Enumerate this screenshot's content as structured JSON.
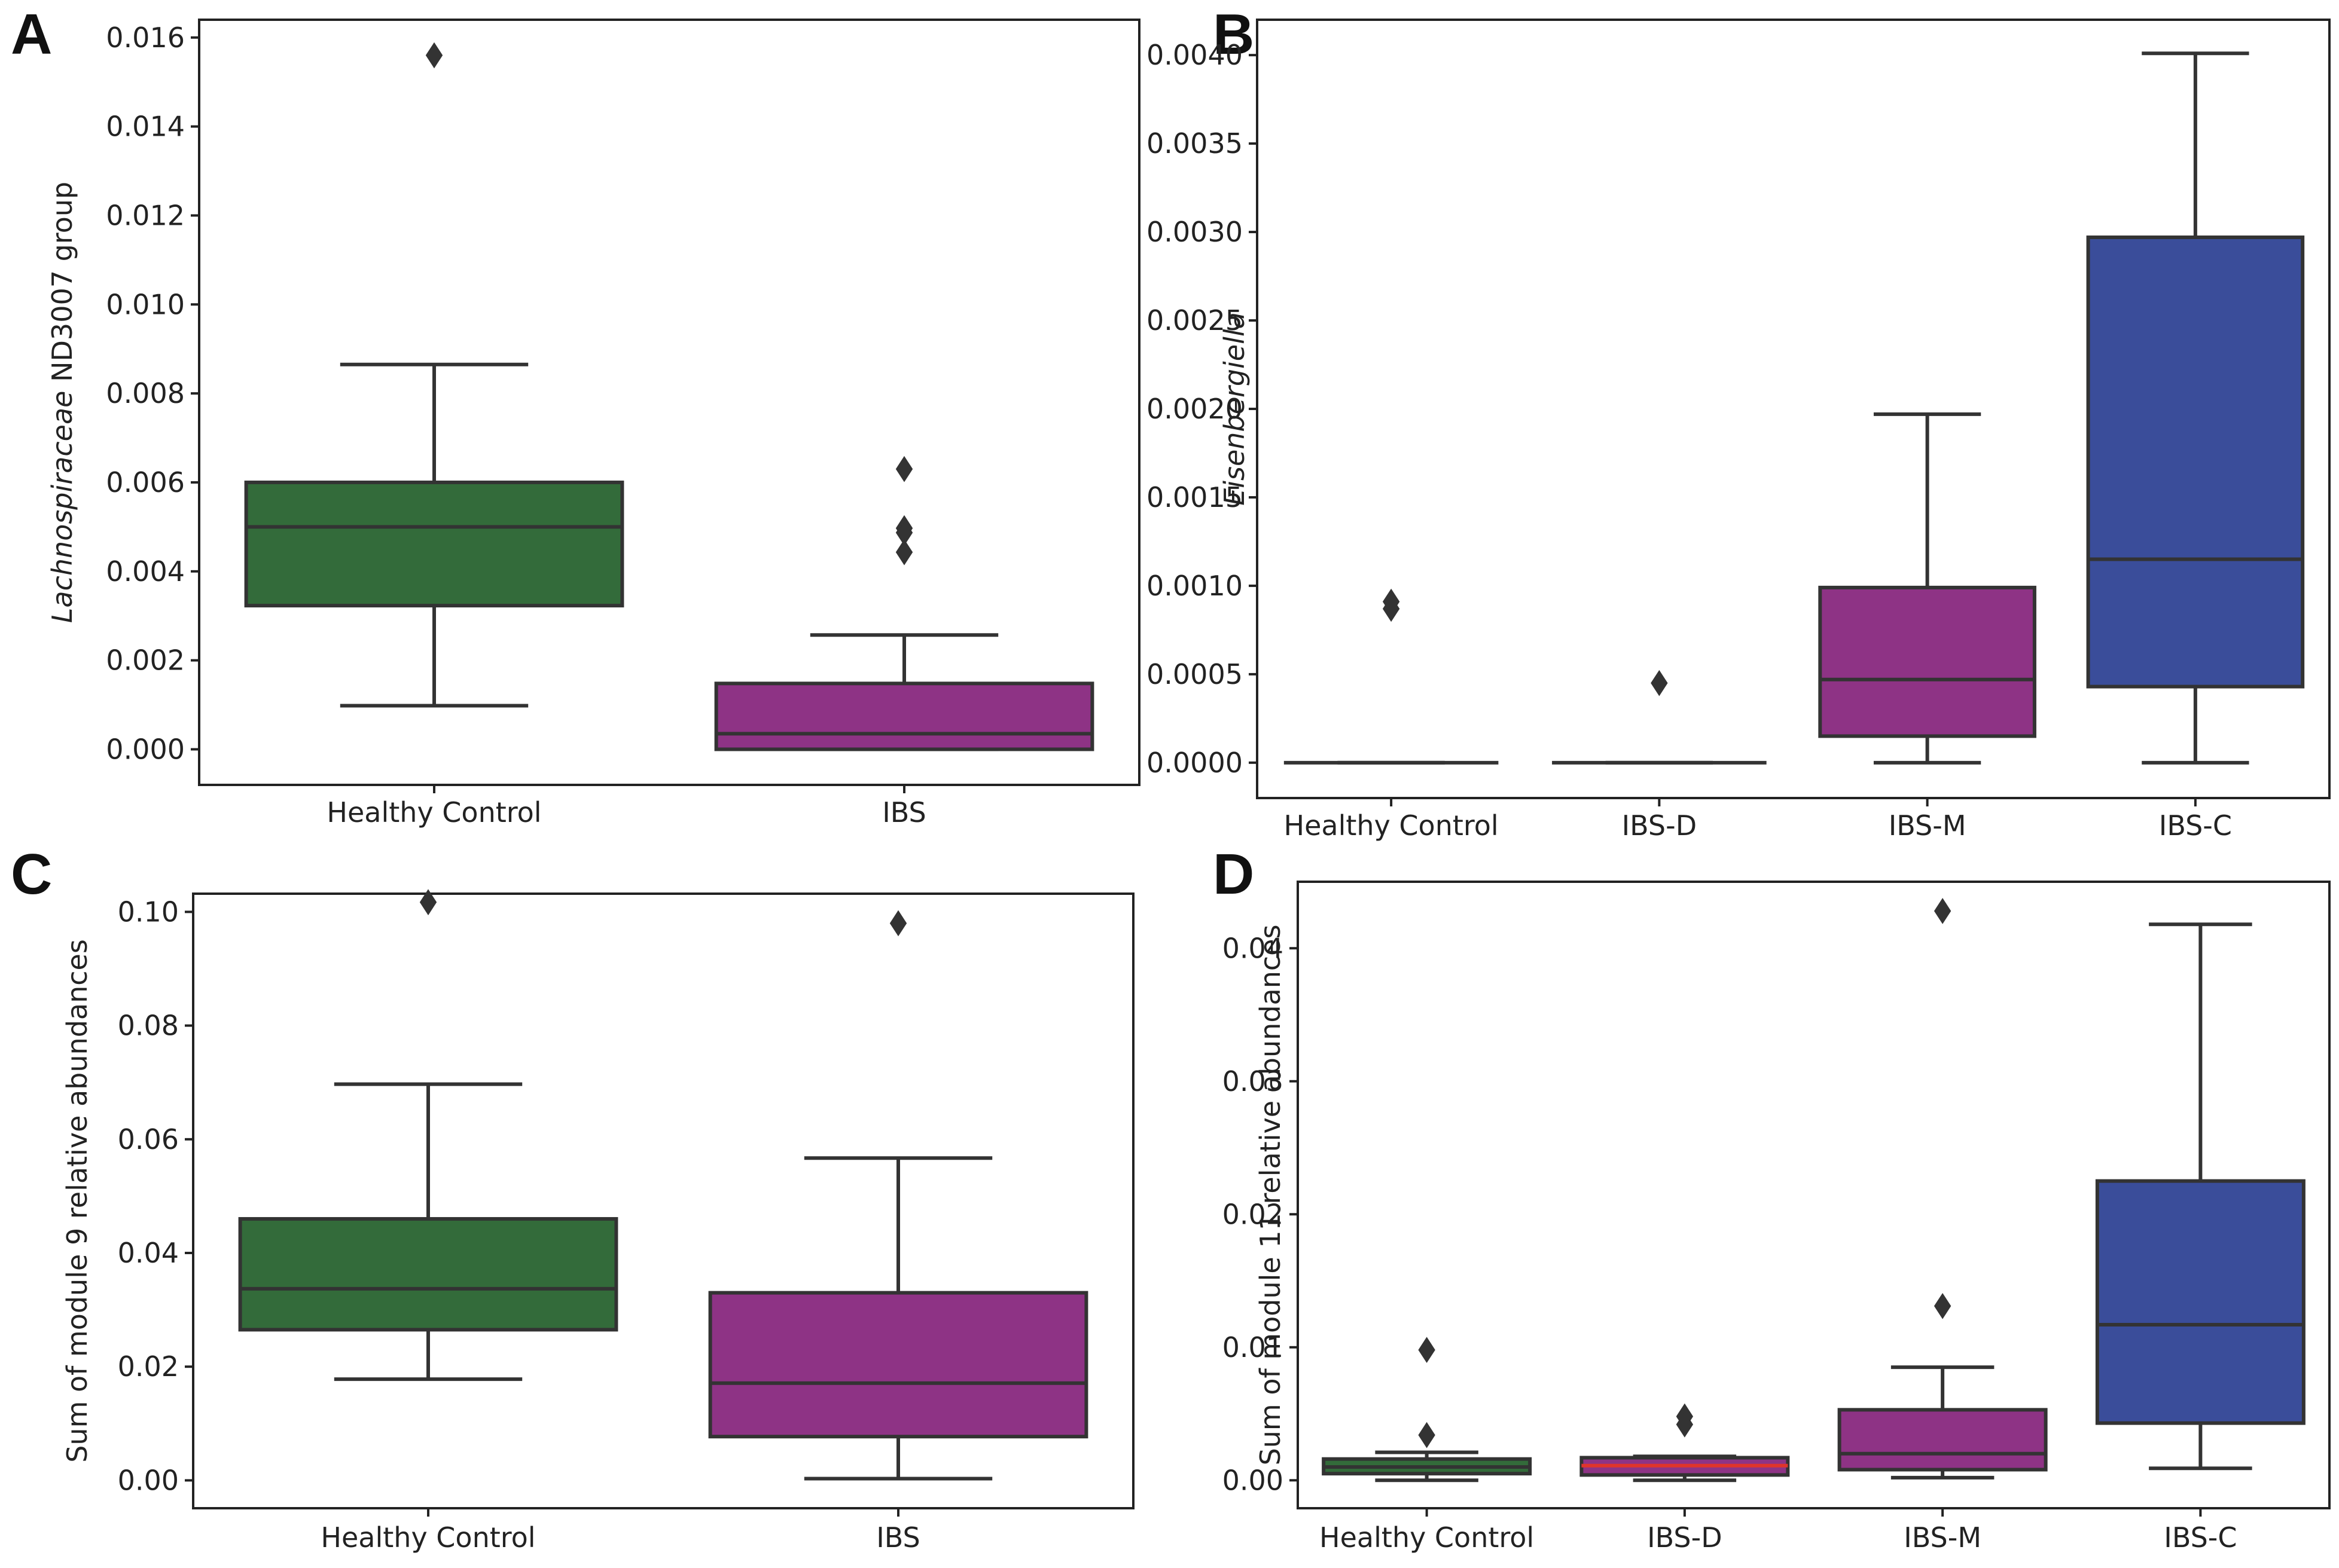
{
  "figure": {
    "panels": [
      {
        "letter": "A"
      },
      {
        "letter": "B"
      },
      {
        "letter": "C"
      },
      {
        "letter": "D"
      }
    ]
  },
  "colors": {
    "healthy": "#336b3a",
    "ibs": "#8e3385",
    "ibs_d": "#8e3385",
    "ibs_m": "#8e3385",
    "ibs_c": "#3a4d9a",
    "line": "#333333",
    "median_red": "#e0342b"
  },
  "chart_data": [
    {
      "type": "box",
      "panel": "A",
      "ylabel_italic": "Lachnospiraceae",
      "ylabel_rest": " ND3007 group",
      "ylim": [
        -0.0008,
        0.0164
      ],
      "yticks": [
        0.0,
        0.002,
        0.004,
        0.006,
        0.008,
        0.01,
        0.012,
        0.014,
        0.016
      ],
      "ytick_labels": [
        "0.000",
        "0.002",
        "0.004",
        "0.006",
        "0.008",
        "0.010",
        "0.012",
        "0.014",
        "0.016"
      ],
      "categories": [
        "Healthy Control",
        "IBS"
      ],
      "boxes": [
        {
          "color_key": "healthy",
          "whisker_low": 0.00098,
          "q1": 0.00323,
          "median": 0.005,
          "q3": 0.006,
          "whisker_high": 0.00865,
          "outliers": [
            0.0156
          ],
          "median_color_key": "line"
        },
        {
          "color_key": "ibs",
          "whisker_low": 0.0,
          "q1": 0.0,
          "median": 0.00035,
          "q3": 0.00148,
          "whisker_high": 0.00257,
          "outliers": [
            0.0063,
            0.00497,
            0.00487,
            0.00443
          ],
          "median_color_key": "line"
        }
      ]
    },
    {
      "type": "box",
      "panel": "B",
      "ylabel_italic": "Eisenbergiella",
      "ylabel_rest": "",
      "ylim": [
        -0.0002,
        0.0042
      ],
      "yticks": [
        0.0,
        0.0005,
        0.001,
        0.0015,
        0.002,
        0.0025,
        0.003,
        0.0035,
        0.004
      ],
      "ytick_labels": [
        "0.0000",
        "0.0005",
        "0.0010",
        "0.0015",
        "0.0020",
        "0.0025",
        "0.0030",
        "0.0035",
        "0.0040"
      ],
      "categories": [
        "Healthy Control",
        "IBS-D",
        "IBS-M",
        "IBS-C"
      ],
      "boxes": [
        {
          "color_key": "healthy",
          "whisker_low": 0.0,
          "q1": 0.0,
          "median": 0.0,
          "q3": 0.0,
          "whisker_high": 0.0,
          "outliers": [
            0.00091,
            0.00087
          ],
          "median_color_key": "line"
        },
        {
          "color_key": "ibs_d",
          "whisker_low": 0.0,
          "q1": 0.0,
          "median": 0.0,
          "q3": 0.0,
          "whisker_high": 0.0,
          "outliers": [
            0.00045
          ],
          "median_color_key": "line"
        },
        {
          "color_key": "ibs_m",
          "whisker_low": 0.0,
          "q1": 0.00015,
          "median": 0.00047,
          "q3": 0.00099,
          "whisker_high": 0.00197,
          "outliers": [],
          "median_color_key": "line"
        },
        {
          "color_key": "ibs_c",
          "whisker_low": 0.0,
          "q1": 0.00043,
          "median": 0.00115,
          "q3": 0.00297,
          "whisker_high": 0.00401,
          "outliers": [],
          "median_color_key": "line"
        }
      ]
    },
    {
      "type": "box",
      "panel": "C",
      "ylabel_italic": "",
      "ylabel_rest": "Sum of module 9 relative abundances",
      "ylim": [
        -0.0049,
        0.1032
      ],
      "yticks": [
        0.0,
        0.02,
        0.04,
        0.06,
        0.08,
        0.1
      ],
      "ytick_labels": [
        "0.00",
        "0.02",
        "0.04",
        "0.06",
        "0.08",
        "0.10"
      ],
      "categories": [
        "Healthy Control",
        "IBS"
      ],
      "boxes": [
        {
          "color_key": "healthy",
          "whisker_low": 0.0178,
          "q1": 0.0265,
          "median": 0.0337,
          "q3": 0.046,
          "whisker_high": 0.0697,
          "outliers": [
            0.1017
          ],
          "median_color_key": "line"
        },
        {
          "color_key": "ibs",
          "whisker_low": 0.0003,
          "q1": 0.0077,
          "median": 0.0171,
          "q3": 0.033,
          "whisker_high": 0.0567,
          "outliers": [
            0.098
          ],
          "median_color_key": "line"
        }
      ]
    },
    {
      "type": "box",
      "panel": "D",
      "ylabel_italic": "",
      "ylabel_rest": "Sum of module 11 relative abundances",
      "ylim": [
        -0.0021,
        0.045
      ],
      "yticks": [
        0.0,
        0.01,
        0.02,
        0.03,
        0.04
      ],
      "ytick_labels": [
        "0.00",
        "0.01",
        "0.02",
        "0.03",
        "0.04"
      ],
      "categories": [
        "Healthy Control",
        "IBS-D",
        "IBS-M",
        "IBS-C"
      ],
      "boxes": [
        {
          "color_key": "healthy",
          "whisker_low": 0.0,
          "q1": 0.0005,
          "median": 0.001,
          "q3": 0.0016,
          "whisker_high": 0.0021,
          "outliers": [
            0.0098,
            0.0034
          ],
          "median_color_key": "line"
        },
        {
          "color_key": "ibs_d",
          "whisker_low": 0.0,
          "q1": 0.0004,
          "median": 0.0011,
          "q3": 0.0017,
          "whisker_high": 0.0018,
          "outliers": [
            0.0048,
            0.0042
          ],
          "median_color_key": "median_red"
        },
        {
          "color_key": "ibs_m",
          "whisker_low": 0.0002,
          "q1": 0.0008,
          "median": 0.002,
          "q3": 0.0053,
          "whisker_high": 0.0085,
          "outliers": [
            0.0428,
            0.0131
          ],
          "median_color_key": "line"
        },
        {
          "color_key": "ibs_c",
          "whisker_low": 0.0009,
          "q1": 0.0043,
          "median": 0.0117,
          "q3": 0.0225,
          "whisker_high": 0.0418,
          "outliers": [],
          "median_color_key": "line"
        }
      ]
    }
  ]
}
